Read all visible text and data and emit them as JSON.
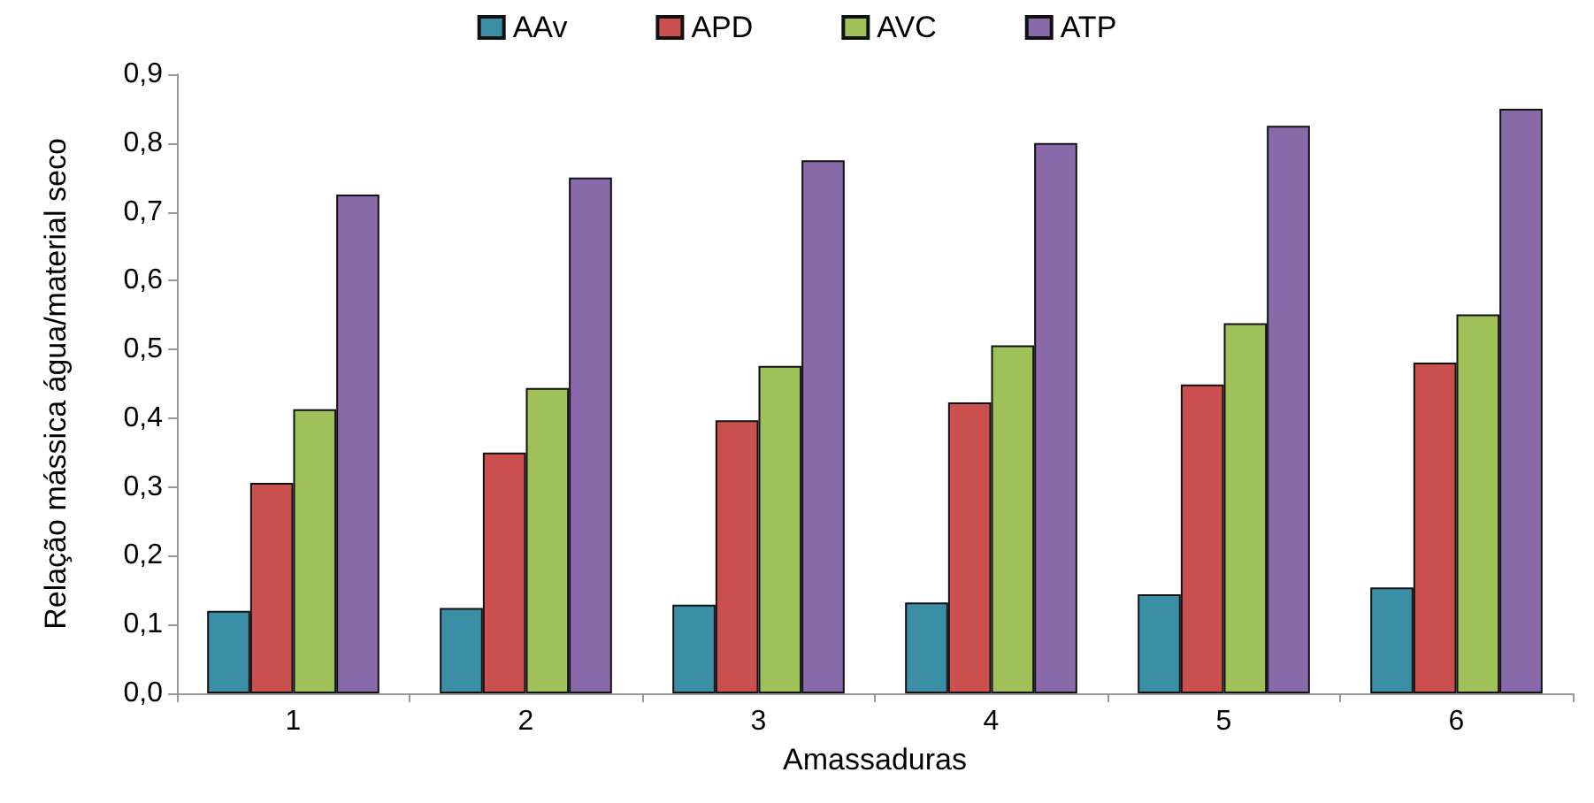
{
  "chart_data": {
    "type": "bar",
    "xlabel": "Amassaduras",
    "ylabel": "Relação mássica água/material seco",
    "categories": [
      "1",
      "2",
      "3",
      "4",
      "5",
      "6"
    ],
    "series": [
      {
        "name": "AAv",
        "color": "#3a8ea6",
        "values": [
          0.12,
          0.124,
          0.129,
          0.132,
          0.144,
          0.154
        ]
      },
      {
        "name": "APD",
        "color": "#c9504e",
        "values": [
          0.306,
          0.35,
          0.397,
          0.423,
          0.449,
          0.481
        ]
      },
      {
        "name": "AVC",
        "color": "#a0c05a",
        "values": [
          0.413,
          0.444,
          0.476,
          0.506,
          0.538,
          0.551
        ]
      },
      {
        "name": "ATP",
        "color": "#886aaa",
        "values": [
          0.725,
          0.75,
          0.775,
          0.8,
          0.825,
          0.85
        ]
      }
    ],
    "ylim": [
      0,
      0.9
    ],
    "yticks": [
      {
        "value": 0,
        "label": "0,0"
      },
      {
        "value": 0.1,
        "label": "0,1"
      },
      {
        "value": 0.2,
        "label": "0,2"
      },
      {
        "value": 0.3,
        "label": "0,3"
      },
      {
        "value": 0.4,
        "label": "0,4"
      },
      {
        "value": 0.5,
        "label": "0,5"
      },
      {
        "value": 0.6,
        "label": "0,6"
      },
      {
        "value": 0.7,
        "label": "0,7"
      },
      {
        "value": 0.8,
        "label": "0,8"
      },
      {
        "value": 0.9,
        "label": "0,9"
      }
    ],
    "grid": false,
    "legend": "top"
  }
}
